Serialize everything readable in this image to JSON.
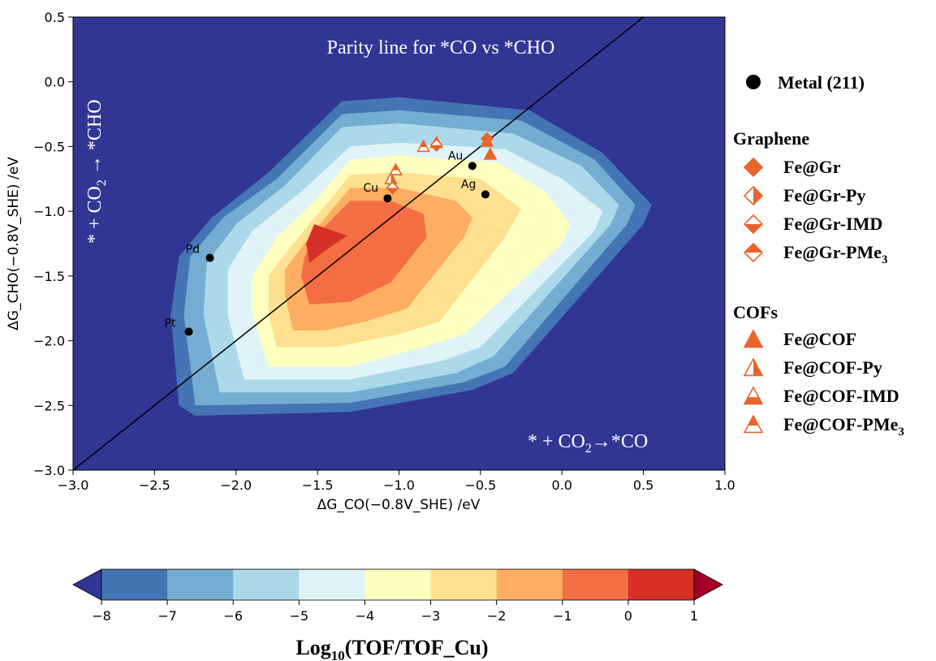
{
  "chart_data": {
    "type": "contour",
    "xlabel": "ΔG_CO(−0.8V_SHE) /eV",
    "ylabel": "ΔG_CHO(−0.8V_SHE) /eV",
    "xlim": [
      -3.0,
      1.0
    ],
    "ylim": [
      -3.0,
      0.5
    ],
    "x_ticks": [
      "−3.0",
      "−2.5",
      "−2.0",
      "−1.5",
      "−1.0",
      "−0.5",
      "0.0",
      "0.5",
      "1.0"
    ],
    "y_ticks": [
      "0.5",
      "0.0",
      "−0.5",
      "−1.0",
      "−1.5",
      "−2.0",
      "−2.5",
      "−3.0"
    ],
    "annotations": {
      "parity": "Parity line for *CO vs *CHO",
      "region_cho_pre": "* + CO",
      "region_cho_post": " → *CHO",
      "region_co_pre": "* + CO",
      "region_co_post": "→*CO",
      "sub2": "2"
    },
    "parity_line": [
      [
        -3.0,
        -3.0
      ],
      [
        0.5,
        0.5
      ]
    ],
    "contour_levels": [
      -8,
      -7,
      -6,
      -5,
      -4,
      -3,
      -2,
      -1,
      0,
      1
    ],
    "contour_colors": [
      "#313695",
      "#4575b4",
      "#74add1",
      "#abd9e9",
      "#e0f3f8",
      "#ffffbf",
      "#fee090",
      "#fdae61",
      "#f46d43",
      "#d73027",
      "#a50026"
    ],
    "contours": [
      {
        "level": -7,
        "polygon": [
          [
            -1.35,
            -0.15
          ],
          [
            -1.0,
            -0.12
          ],
          [
            -0.2,
            -0.22
          ],
          [
            0.25,
            -0.55
          ],
          [
            0.55,
            -0.95
          ],
          [
            0.5,
            -1.1
          ],
          [
            -0.3,
            -2.25
          ],
          [
            -0.55,
            -2.38
          ],
          [
            -1.3,
            -2.55
          ],
          [
            -2.25,
            -2.58
          ],
          [
            -2.35,
            -2.5
          ],
          [
            -2.4,
            -1.8
          ],
          [
            -2.35,
            -1.35
          ],
          [
            -2.15,
            -1.05
          ],
          [
            -1.8,
            -0.7
          ]
        ]
      },
      {
        "level": -6,
        "polygon": [
          [
            -1.35,
            -0.25
          ],
          [
            -1.0,
            -0.22
          ],
          [
            -0.25,
            -0.3
          ],
          [
            0.2,
            -0.6
          ],
          [
            0.45,
            -0.95
          ],
          [
            0.4,
            -1.1
          ],
          [
            -0.35,
            -2.2
          ],
          [
            -0.6,
            -2.32
          ],
          [
            -1.3,
            -2.48
          ],
          [
            -2.25,
            -2.5
          ],
          [
            -2.32,
            -1.8
          ],
          [
            -2.28,
            -1.35
          ],
          [
            -2.08,
            -1.05
          ],
          [
            -1.75,
            -0.75
          ]
        ]
      },
      {
        "level": -5,
        "polygon": [
          [
            -1.35,
            -0.35
          ],
          [
            -1.0,
            -0.32
          ],
          [
            -0.3,
            -0.4
          ],
          [
            0.12,
            -0.65
          ],
          [
            0.35,
            -0.95
          ],
          [
            0.3,
            -1.1
          ],
          [
            -0.42,
            -2.12
          ],
          [
            -0.65,
            -2.25
          ],
          [
            -1.3,
            -2.4
          ],
          [
            -2.1,
            -2.4
          ],
          [
            -2.2,
            -1.8
          ],
          [
            -2.18,
            -1.4
          ],
          [
            -2.0,
            -1.1
          ],
          [
            -1.7,
            -0.8
          ]
        ]
      },
      {
        "level": -4,
        "polygon": [
          [
            -1.3,
            -0.5
          ],
          [
            -1.0,
            -0.47
          ],
          [
            -0.35,
            -0.52
          ],
          [
            0.0,
            -0.75
          ],
          [
            0.25,
            -1.0
          ],
          [
            0.2,
            -1.15
          ],
          [
            -0.5,
            -2.05
          ],
          [
            -0.72,
            -2.15
          ],
          [
            -1.3,
            -2.3
          ],
          [
            -1.95,
            -2.3
          ],
          [
            -2.05,
            -1.8
          ],
          [
            -2.05,
            -1.45
          ],
          [
            -1.9,
            -1.15
          ],
          [
            -1.6,
            -0.85
          ]
        ]
      },
      {
        "level": -3,
        "polygon": [
          [
            -1.3,
            -0.6
          ],
          [
            -1.0,
            -0.57
          ],
          [
            -0.4,
            -0.62
          ],
          [
            -0.1,
            -0.85
          ],
          [
            0.05,
            -1.1
          ],
          [
            0.0,
            -1.25
          ],
          [
            -0.6,
            -1.95
          ],
          [
            -0.85,
            -2.05
          ],
          [
            -1.3,
            -2.2
          ],
          [
            -1.8,
            -2.2
          ],
          [
            -1.9,
            -1.8
          ],
          [
            -1.9,
            -1.5
          ],
          [
            -1.75,
            -1.2
          ],
          [
            -1.5,
            -0.9
          ]
        ]
      },
      {
        "level": -2,
        "polygon": [
          [
            -1.3,
            -0.72
          ],
          [
            -1.0,
            -0.7
          ],
          [
            -0.5,
            -0.75
          ],
          [
            -0.25,
            -0.98
          ],
          [
            -0.35,
            -1.2
          ],
          [
            -0.75,
            -1.85
          ],
          [
            -1.0,
            -1.95
          ],
          [
            -1.4,
            -2.05
          ],
          [
            -1.75,
            -2.05
          ],
          [
            -1.8,
            -1.8
          ],
          [
            -1.8,
            -1.5
          ],
          [
            -1.65,
            -1.25
          ],
          [
            -1.45,
            -0.95
          ]
        ]
      },
      {
        "level": -1,
        "polygon": [
          [
            -1.3,
            -0.82
          ],
          [
            -1.0,
            -0.82
          ],
          [
            -0.65,
            -0.92
          ],
          [
            -0.55,
            -1.05
          ],
          [
            -0.6,
            -1.2
          ],
          [
            -0.95,
            -1.75
          ],
          [
            -1.2,
            -1.85
          ],
          [
            -1.45,
            -1.92
          ],
          [
            -1.65,
            -1.92
          ],
          [
            -1.7,
            -1.65
          ],
          [
            -1.7,
            -1.45
          ],
          [
            -1.58,
            -1.25
          ],
          [
            -1.42,
            -1.0
          ]
        ]
      },
      {
        "level": 0,
        "polygon": [
          [
            -1.3,
            -0.92
          ],
          [
            -1.05,
            -0.92
          ],
          [
            -0.85,
            -1.02
          ],
          [
            -0.83,
            -1.2
          ],
          [
            -1.05,
            -1.55
          ],
          [
            -1.3,
            -1.7
          ],
          [
            -1.55,
            -1.72
          ],
          [
            -1.6,
            -1.5
          ],
          [
            -1.58,
            -1.35
          ],
          [
            -1.48,
            -1.15
          ]
        ]
      },
      {
        "level": 1,
        "polygon": [
          [
            -1.52,
            -1.1
          ],
          [
            -1.32,
            -1.19
          ],
          [
            -1.45,
            -1.3
          ],
          [
            -1.55,
            -1.4
          ],
          [
            -1.57,
            -1.25
          ]
        ]
      }
    ],
    "points": [
      {
        "label": "Pd",
        "x": -2.16,
        "y": -1.36,
        "label_dx": -30,
        "label_dy": -6
      },
      {
        "label": "Pt",
        "x": -2.29,
        "y": -1.93,
        "label_dx": -30,
        "label_dy": -6
      },
      {
        "label": "Cu",
        "x": -1.07,
        "y": -0.9,
        "label_dx": -30,
        "label_dy": -8
      },
      {
        "label": "Au",
        "x": -0.55,
        "y": -0.65,
        "label_dx": -30,
        "label_dy": -8
      },
      {
        "label": "Ag",
        "x": -0.47,
        "y": -0.87,
        "label_dx": -30,
        "label_dy": -8
      }
    ],
    "orange_markers": [
      {
        "shape": "tri-top",
        "x": -0.85,
        "y": -0.5
      },
      {
        "shape": "tri-top",
        "x": -0.77,
        "y": -0.47
      },
      {
        "shape": "dia-bottom",
        "x": -0.77,
        "y": -0.49
      },
      {
        "shape": "dia-full",
        "x": -0.46,
        "y": -0.44
      },
      {
        "shape": "tri-full",
        "x": -0.46,
        "y": -0.46
      },
      {
        "shape": "tri-full",
        "x": -0.44,
        "y": -0.56
      },
      {
        "shape": "tri-top",
        "x": -1.02,
        "y": -0.68
      },
      {
        "shape": "tri-half",
        "x": -1.05,
        "y": -0.75
      },
      {
        "shape": "dia-bottom",
        "x": -1.04,
        "y": -0.82
      }
    ],
    "legend": {
      "placement": "right",
      "metal_label": "Metal (211)",
      "graphene_title": "Graphene",
      "graphene_items": [
        {
          "label": "Fe@Gr",
          "icon": "dia-full"
        },
        {
          "label": "Fe@Gr-Py",
          "icon": "dia-half"
        },
        {
          "label": "Fe@Gr-IMD",
          "icon": "dia-bottom"
        },
        {
          "label": "Fe@Gr-PMe",
          "sub": "3",
          "icon": "dia-top"
        }
      ],
      "cofs_title": "COFs",
      "cofs_items": [
        {
          "label": "Fe@COF",
          "icon": "tri-full"
        },
        {
          "label": "Fe@COF-Py",
          "icon": "tri-half"
        },
        {
          "label": "Fe@COF-IMD",
          "icon": "tri-bottom"
        },
        {
          "label": "Fe@COF-PMe",
          "sub": "3",
          "icon": "tri-top"
        }
      ]
    },
    "colorbar": {
      "title_pre": "Log",
      "title_sub": "10",
      "title_post": "(TOF/TOF_Cu)",
      "ticks": [
        "−8",
        "−7",
        "−6",
        "−5",
        "−4",
        "−3",
        "−2",
        "−1",
        "0",
        "1"
      ]
    },
    "marker_color": "#e8642c",
    "background_color": "#313695"
  }
}
